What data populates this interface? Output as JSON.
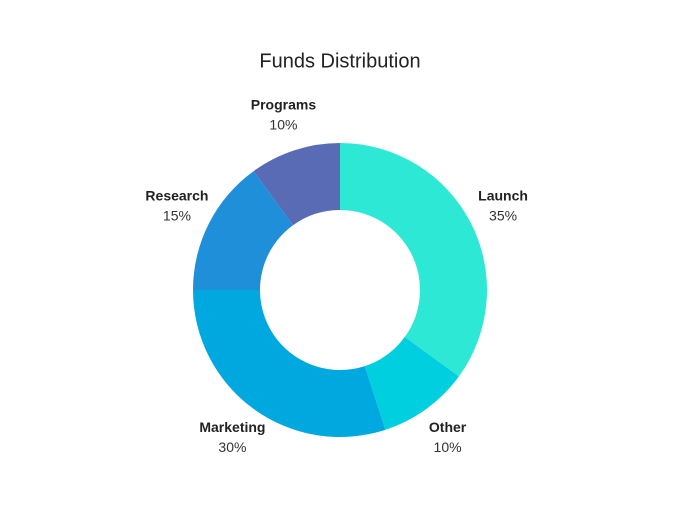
{
  "chart_data": {
    "type": "donut",
    "title": "Funds Distribution",
    "categories": [
      "Launch",
      "Other",
      "Marketing",
      "Research",
      "Programs"
    ],
    "values": [
      35,
      10,
      30,
      15,
      10
    ],
    "value_labels": [
      "35%",
      "10%",
      "30%",
      "15%",
      "10%"
    ],
    "colors": [
      "#2ee8d6",
      "#00cfe0",
      "#00a8e0",
      "#1e8fd8",
      "#5a6bb5"
    ]
  }
}
